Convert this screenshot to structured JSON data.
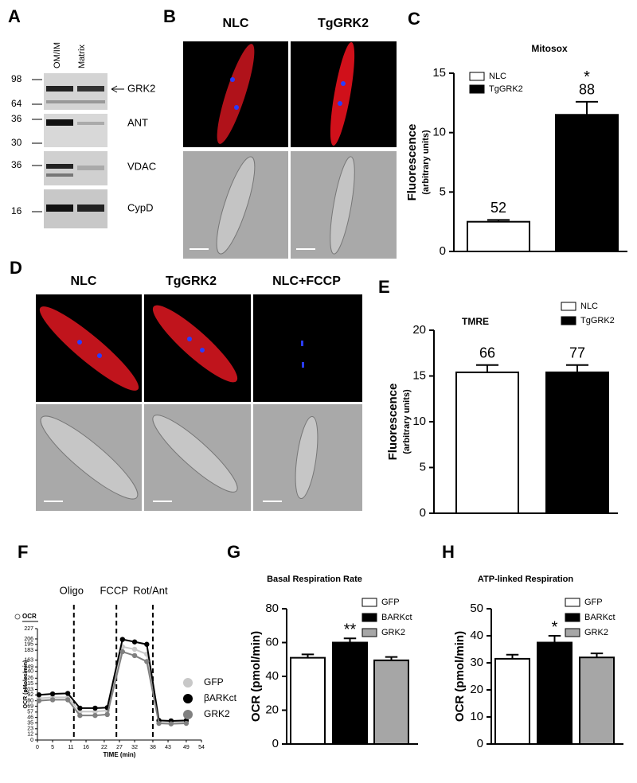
{
  "panel_letters": [
    "A",
    "B",
    "C",
    "D",
    "E",
    "F",
    "G",
    "H"
  ],
  "blot": {
    "lanes": [
      "OM/IM",
      "Matrix"
    ],
    "markers": [
      "98",
      "64",
      "36",
      "30",
      "36",
      "16"
    ],
    "bands": [
      "GRK2",
      "ANT",
      "VDAC",
      "CypD"
    ]
  },
  "micrographs_b": {
    "columns": [
      "NLC",
      "TgGRK2"
    ]
  },
  "micrographs_d": {
    "columns": [
      "NLC",
      "TgGRK2",
      "NLC+FCCP"
    ]
  },
  "chart_data": [
    {
      "type": "bar",
      "title": "Mitosox",
      "ylabel": [
        "Fluorescence",
        "(arbitrary units)"
      ],
      "ylim": [
        0,
        15
      ],
      "yticks": [
        0,
        5,
        10,
        15
      ],
      "series": [
        {
          "name": "NLC",
          "color": "#ffffff",
          "values": [
            2.5
          ],
          "errors": [
            0.15
          ],
          "annotation": "52"
        },
        {
          "name": "TgGRK2",
          "color": "#000000",
          "values": [
            11.5
          ],
          "errors": [
            1.1
          ],
          "annotation": "88",
          "significance": "*"
        }
      ]
    },
    {
      "type": "bar",
      "title": "TMRE",
      "ylabel": [
        "Fluorescence",
        "(arbitrary  units)"
      ],
      "ylim": [
        0,
        20
      ],
      "yticks": [
        0,
        5,
        10,
        15,
        20
      ],
      "series": [
        {
          "name": "NLC",
          "color": "#ffffff",
          "values": [
            15.4
          ],
          "errors": [
            0.8
          ],
          "annotation": "66"
        },
        {
          "name": "TgGRK2",
          "color": "#000000",
          "values": [
            15.4
          ],
          "errors": [
            0.8
          ],
          "annotation": "77"
        }
      ]
    },
    {
      "type": "line",
      "legend_title": "OCR",
      "xlabel": "TIME (min)",
      "ylabel": "OCR (pMoles/min)",
      "xlim": [
        0,
        54
      ],
      "xticks": [
        0,
        5,
        11,
        16,
        22,
        27,
        32,
        38,
        43,
        49,
        54
      ],
      "ylim": [
        0,
        227
      ],
      "yticks": [
        0,
        12,
        23,
        35,
        46,
        57,
        69,
        80,
        92,
        103,
        115,
        126,
        140,
        149,
        163,
        183,
        195,
        206,
        227
      ],
      "injections": [
        {
          "x": 12,
          "label": "Oligo"
        },
        {
          "x": 26,
          "label": "FCCP"
        },
        {
          "x": 38,
          "label": "Rot/Ant"
        }
      ],
      "x": [
        0.5,
        5,
        10,
        14,
        19,
        23,
        28,
        32,
        36,
        40,
        44,
        49
      ],
      "series": [
        {
          "name": "GFP",
          "color": "#c8c8c8",
          "values": [
            85,
            87,
            87,
            58,
            58,
            60,
            190,
            185,
            175,
            38,
            37,
            37
          ]
        },
        {
          "name": "βARKct",
          "color": "#000000",
          "values": [
            92,
            94,
            95,
            65,
            65,
            66,
            205,
            200,
            195,
            40,
            39,
            40
          ]
        },
        {
          "name": "GRK2",
          "color": "#808080",
          "values": [
            80,
            82,
            82,
            50,
            50,
            52,
            180,
            172,
            160,
            34,
            33,
            34
          ]
        }
      ]
    },
    {
      "type": "bar",
      "title": "Basal Respiration Rate",
      "ylabel": [
        "OCR (pmol/min)"
      ],
      "ylim": [
        0,
        80
      ],
      "yticks": [
        0,
        20,
        40,
        60,
        80
      ],
      "series": [
        {
          "name": "GFP",
          "color": "#ffffff",
          "values": [
            51
          ],
          "errors": [
            2
          ]
        },
        {
          "name": "BARKct",
          "color": "#000000",
          "values": [
            60
          ],
          "errors": [
            2.5
          ],
          "significance": "**"
        },
        {
          "name": "GRK2",
          "color": "#a6a6a6",
          "values": [
            49.5
          ],
          "errors": [
            2
          ]
        }
      ]
    },
    {
      "type": "bar",
      "title": "ATP-linked Respiration",
      "ylabel": [
        "OCR (pmol/min)"
      ],
      "ylim": [
        0,
        50
      ],
      "yticks": [
        0,
        10,
        20,
        30,
        40,
        50
      ],
      "series": [
        {
          "name": "GFP",
          "color": "#ffffff",
          "values": [
            31.5
          ],
          "errors": [
            1.5
          ]
        },
        {
          "name": "BARKct",
          "color": "#000000",
          "values": [
            37.5
          ],
          "errors": [
            2.5
          ],
          "significance": "*"
        },
        {
          "name": "GRK2",
          "color": "#a6a6a6",
          "values": [
            32
          ],
          "errors": [
            1.5
          ]
        }
      ]
    }
  ]
}
